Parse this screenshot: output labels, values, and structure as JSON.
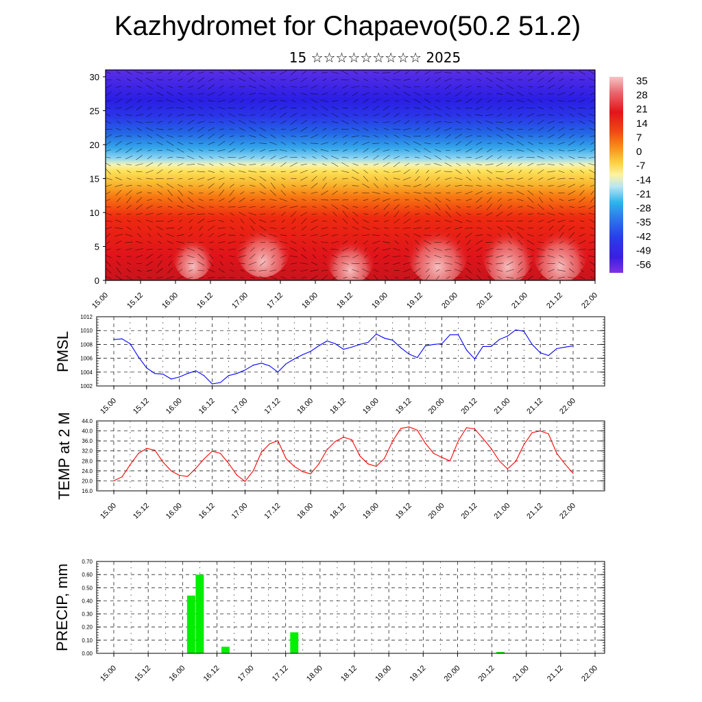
{
  "page": {
    "title": "Kazhydromet for Chapaevo(50.2 51.2)",
    "subtitle": "15 ☆☆☆☆☆☆☆☆☆ 2025"
  },
  "time_labels": [
    "15.00",
    "15.12",
    "16.00",
    "16.12",
    "17.00",
    "17.12",
    "18.00",
    "18.12",
    "19.00",
    "19.12",
    "20.00",
    "20.12",
    "21.00",
    "21.12",
    "22.00"
  ],
  "chart_data": [
    {
      "type": "heatmap",
      "name": "cross-section",
      "title": "",
      "ylabel": "",
      "ylim": [
        0,
        30
      ],
      "y_ticks": [
        "0",
        "5",
        "10",
        "15",
        "20",
        "25",
        "30"
      ],
      "colorbar_labels": [
        "35",
        "28",
        "21",
        "14",
        "7",
        "0",
        "-7",
        "-14",
        "-21",
        "-28",
        "-35",
        "-42",
        "-49",
        "-56"
      ],
      "colorbar_range": [
        -60,
        38
      ],
      "colors": {
        "warm": "#e31a1c",
        "cold": "#3a1fe0",
        "mid": "#f7e14a"
      }
    },
    {
      "type": "line",
      "name": "PMSL",
      "ylabel": "PMSL",
      "color": "#0000ff",
      "ylim": [
        1002,
        1012
      ],
      "y_ticks": [
        "1002",
        "1004",
        "1006",
        "1008",
        "1010",
        "1012"
      ],
      "x": [
        0,
        3,
        6,
        9,
        12,
        15,
        18,
        21,
        24,
        27,
        30,
        33,
        36,
        39,
        42,
        45,
        48,
        51,
        54,
        57,
        60,
        63,
        66,
        69,
        72,
        75,
        78,
        81,
        84,
        87,
        90,
        93,
        96,
        99,
        102,
        105,
        108,
        111,
        114,
        117,
        120,
        123,
        126,
        129,
        132,
        135,
        138,
        141,
        144,
        147,
        150,
        153,
        156,
        159,
        162,
        165,
        168
      ],
      "values": [
        1008.7,
        1008.8,
        1008.1,
        1006.2,
        1004.6,
        1003.8,
        1003.7,
        1003.0,
        1003.3,
        1003.8,
        1004.2,
        1003.5,
        1002.3,
        1002.5,
        1003.5,
        1003.8,
        1004.3,
        1005.0,
        1005.3,
        1004.9,
        1004.0,
        1005.2,
        1005.9,
        1006.5,
        1007.0,
        1007.8,
        1008.5,
        1008.1,
        1007.3,
        1007.6,
        1008.0,
        1008.3,
        1009.5,
        1008.9,
        1008.6,
        1007.5,
        1006.6,
        1006.1,
        1007.8,
        1008.0,
        1008.1,
        1009.4,
        1009.4,
        1007.2,
        1005.9,
        1007.7,
        1007.7,
        1008.7,
        1009.2,
        1010.1,
        1009.9,
        1008.0,
        1006.8,
        1006.4,
        1007.4,
        1007.6,
        1007.8
      ]
    },
    {
      "type": "line",
      "name": "TEMP at 2 M",
      "ylabel": "TEMP at 2 M",
      "color": "#ff0000",
      "ylim": [
        16,
        44
      ],
      "y_ticks": [
        "16.0",
        "20.0",
        "24.0",
        "28.0",
        "32.0",
        "36.0",
        "40.0",
        "44.0"
      ],
      "x": [
        0,
        3,
        6,
        9,
        12,
        15,
        18,
        21,
        24,
        27,
        30,
        33,
        36,
        39,
        42,
        45,
        48,
        51,
        54,
        57,
        60,
        63,
        66,
        69,
        72,
        75,
        78,
        81,
        84,
        87,
        90,
        93,
        96,
        99,
        102,
        105,
        108,
        111,
        114,
        117,
        120,
        123,
        126,
        129,
        132,
        135,
        138,
        141,
        144,
        147,
        150,
        153,
        156,
        159,
        162,
        165,
        168
      ],
      "values": [
        20.0,
        21.6,
        26.5,
        31.0,
        33.0,
        32.3,
        27.5,
        24.0,
        22.2,
        21.8,
        25.0,
        28.8,
        31.9,
        31.0,
        27.0,
        22.3,
        19.8,
        24.0,
        31.5,
        34.8,
        36.1,
        28.9,
        25.8,
        23.7,
        22.8,
        26.8,
        32.5,
        35.8,
        37.5,
        36.5,
        30.0,
        26.8,
        25.8,
        29.0,
        36.0,
        41.0,
        41.6,
        40.3,
        35.0,
        31.0,
        29.4,
        28.0,
        36.0,
        41.3,
        40.8,
        37.0,
        33.0,
        28.0,
        24.8,
        27.8,
        34.5,
        39.3,
        40.0,
        38.8,
        31.0,
        26.8,
        23.0
      ]
    },
    {
      "type": "bar",
      "name": "PRECIP, mm",
      "ylabel": "PRECIP, mm",
      "color": "#00ee00",
      "ylim": [
        0,
        0.7
      ],
      "y_ticks": [
        "0.00",
        "0.10",
        "0.20",
        "0.30",
        "0.40",
        "0.50",
        "0.60",
        "0.70"
      ],
      "x": [
        27,
        30,
        39,
        63,
        135
      ],
      "values": [
        0.44,
        0.6,
        0.05,
        0.16,
        0.01
      ]
    }
  ]
}
